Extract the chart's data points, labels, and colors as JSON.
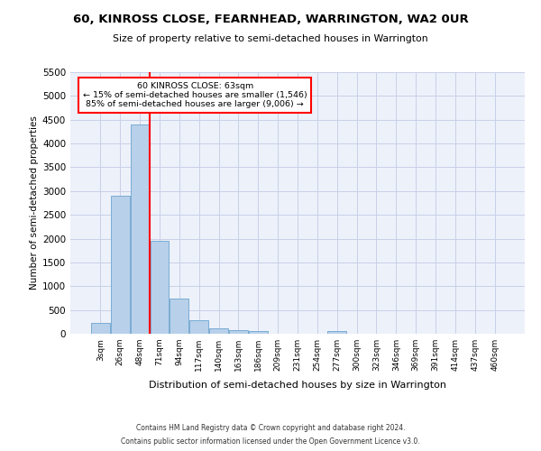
{
  "title": "60, KINROSS CLOSE, FEARNHEAD, WARRINGTON, WA2 0UR",
  "subtitle": "Size of property relative to semi-detached houses in Warrington",
  "xlabel": "Distribution of semi-detached houses by size in Warrington",
  "ylabel": "Number of semi-detached properties",
  "footer_line1": "Contains HM Land Registry data © Crown copyright and database right 2024.",
  "footer_line2": "Contains public sector information licensed under the Open Government Licence v3.0.",
  "bar_labels": [
    "3sqm",
    "26sqm",
    "48sqm",
    "71sqm",
    "94sqm",
    "117sqm",
    "140sqm",
    "163sqm",
    "186sqm",
    "209sqm",
    "231sqm",
    "254sqm",
    "277sqm",
    "300sqm",
    "323sqm",
    "346sqm",
    "369sqm",
    "391sqm",
    "414sqm",
    "437sqm",
    "460sqm"
  ],
  "bar_values": [
    220,
    2900,
    4400,
    1950,
    740,
    280,
    120,
    80,
    50,
    0,
    0,
    0,
    50,
    0,
    0,
    0,
    0,
    0,
    0,
    0,
    0
  ],
  "bar_color": "#b8d0ea",
  "bar_edge_color": "#7aacd4",
  "ylim": [
    0,
    5500
  ],
  "yticks": [
    0,
    500,
    1000,
    1500,
    2000,
    2500,
    3000,
    3500,
    4000,
    4500,
    5000,
    5500
  ],
  "red_line_x": 2.5,
  "annotation_title": "60 KINROSS CLOSE: 63sqm",
  "annotation_line1": "← 15% of semi-detached houses are smaller (1,546)",
  "annotation_line2": "85% of semi-detached houses are larger (9,006) →",
  "bg_color": "#edf1fa",
  "grid_color": "#c8d0e8"
}
